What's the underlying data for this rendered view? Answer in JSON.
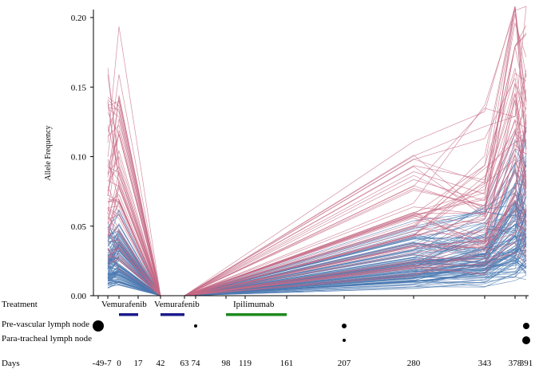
{
  "chart_data": {
    "type": "line",
    "ylabel": "Allele Frequency",
    "xlabel": "Days",
    "ylim": [
      0,
      0.2
    ],
    "yticks": [
      "0.00",
      "0.05",
      "0.10",
      "0.15",
      "0.20"
    ],
    "x_days": [
      -49,
      -7,
      0,
      17,
      42,
      63,
      74,
      98,
      119,
      161,
      207,
      280,
      343,
      378,
      391
    ],
    "x_tick_labels": [
      "-49",
      "-7",
      "0",
      "17",
      "42",
      "63",
      "74",
      "98",
      "119",
      "161",
      "207",
      "280",
      "343",
      "378",
      "391"
    ],
    "series_colors": {
      "pink": "#c66a86",
      "blue": "#4a78b0"
    },
    "profile_groups": [
      {
        "color": "pink",
        "count": 60,
        "points": [
          [
            -7,
            0.095
          ],
          [
            0,
            0.108
          ],
          [
            42,
            0.0
          ],
          [
            63,
            0.0
          ],
          [
            280,
            0.065
          ],
          [
            343,
            0.075
          ],
          [
            378,
            0.16
          ],
          [
            391,
            0.13
          ]
        ]
      },
      {
        "color": "blue",
        "count": 120,
        "points": [
          [
            -7,
            0.03
          ],
          [
            0,
            0.035
          ],
          [
            42,
            0.0
          ],
          [
            63,
            0.0
          ],
          [
            280,
            0.03
          ],
          [
            343,
            0.04
          ],
          [
            378,
            0.065
          ],
          [
            391,
            0.07
          ]
        ]
      }
    ],
    "peak_values": {
      "pink_max": 0.21,
      "vemurafenib_peak": 0.14,
      "day280_peak": 0.117
    }
  },
  "treatment": {
    "row_label": "Treatment",
    "bars": [
      {
        "label": "Vemurafenib",
        "start": 0,
        "end": 17,
        "color": "#1c1c8c"
      },
      {
        "label": "Vemurafenib",
        "start": 42,
        "end": 63,
        "color": "#1c1c8c"
      },
      {
        "label": "Ipilimumab",
        "start": 98,
        "end": 161,
        "color": "#1d8a1d"
      }
    ]
  },
  "lymph_rows": [
    {
      "label": "Pre-vascular lymph node",
      "dots": [
        {
          "day": -49,
          "size": 7
        },
        {
          "day": 74,
          "size": 2
        },
        {
          "day": 207,
          "size": 3
        },
        {
          "day": 391,
          "size": 4
        }
      ]
    },
    {
      "label": "Para-tracheal lymph node",
      "dots": [
        {
          "day": 207,
          "size": 2
        },
        {
          "day": 391,
          "size": 5
        }
      ]
    }
  ]
}
